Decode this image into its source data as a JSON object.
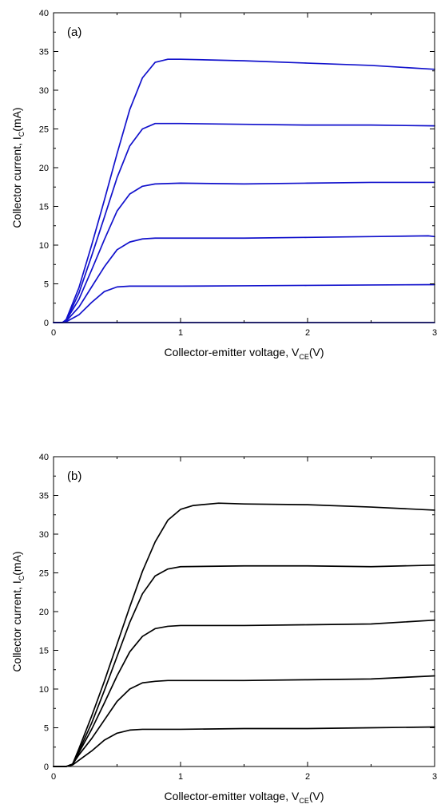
{
  "chart_data": [
    {
      "type": "line",
      "panel_label": "(a)",
      "xlabel": {
        "text": "Collector-emitter voltage, V",
        "sub": "CE",
        "suffix": "(V)"
      },
      "ylabel": {
        "text": "Collector current, I",
        "sub": "C",
        "suffix": "(mA)"
      },
      "xlim": [
        0,
        3
      ],
      "ylim": [
        0,
        40
      ],
      "xticks": [
        0,
        1,
        2,
        3
      ],
      "yticks": [
        0,
        5,
        10,
        15,
        20,
        25,
        30,
        35,
        40
      ],
      "grid": false,
      "color": "#1111cc",
      "series": [
        {
          "x": [
            0.05,
            0.5,
            1.0,
            1.5,
            2.0,
            2.5,
            3.0
          ],
          "y": [
            0,
            0,
            0,
            0,
            0,
            0,
            0
          ]
        },
        {
          "x": [
            0,
            0.07,
            0.1,
            0.2,
            0.3,
            0.4,
            0.5,
            0.6,
            0.8,
            1.0,
            1.5,
            2.0,
            2.5,
            3.0
          ],
          "y": [
            0,
            0,
            0.1,
            1.0,
            2.6,
            4.0,
            4.6,
            4.7,
            4.7,
            4.7,
            4.75,
            4.8,
            4.85,
            4.9
          ]
        },
        {
          "x": [
            0,
            0.07,
            0.1,
            0.2,
            0.3,
            0.4,
            0.5,
            0.6,
            0.7,
            0.8,
            1.0,
            1.5,
            2.0,
            2.5,
            2.95,
            3.0
          ],
          "y": [
            0,
            0,
            0.2,
            2.0,
            4.6,
            7.2,
            9.4,
            10.4,
            10.8,
            10.9,
            10.9,
            10.9,
            11.0,
            11.1,
            11.2,
            11.1
          ]
        },
        {
          "x": [
            0,
            0.07,
            0.1,
            0.2,
            0.3,
            0.4,
            0.5,
            0.6,
            0.7,
            0.8,
            1.0,
            1.5,
            2.0,
            2.5,
            3.0
          ],
          "y": [
            0,
            0,
            0.3,
            3.0,
            6.8,
            10.7,
            14.4,
            16.6,
            17.6,
            17.9,
            18.0,
            17.9,
            18.0,
            18.1,
            18.1
          ]
        },
        {
          "x": [
            0,
            0.07,
            0.1,
            0.2,
            0.3,
            0.4,
            0.5,
            0.6,
            0.7,
            0.8,
            1.0,
            1.5,
            2.0,
            2.5,
            3.0
          ],
          "y": [
            0,
            0,
            0.3,
            3.8,
            8.6,
            13.6,
            18.7,
            22.8,
            25.0,
            25.7,
            25.7,
            25.6,
            25.5,
            25.5,
            25.4
          ]
        },
        {
          "x": [
            0,
            0.07,
            0.1,
            0.2,
            0.3,
            0.4,
            0.5,
            0.6,
            0.7,
            0.8,
            0.9,
            1.0,
            1.5,
            2.0,
            2.5,
            3.0
          ],
          "y": [
            0,
            0,
            0.4,
            4.5,
            10.0,
            15.8,
            21.8,
            27.5,
            31.6,
            33.6,
            34.0,
            34.0,
            33.8,
            33.5,
            33.2,
            32.7
          ]
        }
      ]
    },
    {
      "type": "line",
      "panel_label": "(b)",
      "xlabel": {
        "text": "Collector-emitter voltage, V",
        "sub": "CE",
        "suffix": "(V)"
      },
      "ylabel": {
        "text": "Collector current, I",
        "sub": "C",
        "suffix": "(mA)"
      },
      "xlim": [
        0,
        3
      ],
      "ylim": [
        0,
        40
      ],
      "xticks": [
        0,
        1,
        2,
        3
      ],
      "yticks": [
        0,
        5,
        10,
        15,
        20,
        25,
        30,
        35,
        40
      ],
      "grid": false,
      "color": "#000000",
      "series": [
        {
          "x": [
            0,
            0.1,
            0.15,
            0.2,
            0.3,
            0.4,
            0.5,
            0.6,
            0.7,
            0.8,
            1.0,
            1.5,
            2.0,
            2.5,
            3.0
          ],
          "y": [
            0,
            0,
            0.2,
            0.8,
            2.0,
            3.4,
            4.3,
            4.7,
            4.8,
            4.8,
            4.8,
            4.9,
            4.9,
            5.0,
            5.1
          ]
        },
        {
          "x": [
            0,
            0.1,
            0.15,
            0.2,
            0.3,
            0.4,
            0.5,
            0.6,
            0.7,
            0.8,
            0.9,
            1.0,
            1.5,
            2.0,
            2.5,
            3.0
          ],
          "y": [
            0,
            0,
            0.3,
            1.5,
            3.6,
            6.0,
            8.4,
            10.0,
            10.8,
            11.0,
            11.1,
            11.1,
            11.1,
            11.2,
            11.3,
            11.7
          ]
        },
        {
          "x": [
            0,
            0.1,
            0.15,
            0.2,
            0.3,
            0.4,
            0.5,
            0.6,
            0.7,
            0.8,
            0.9,
            1.0,
            1.5,
            2.0,
            2.5,
            3.0
          ],
          "y": [
            0,
            0,
            0.3,
            1.8,
            4.8,
            8.2,
            11.7,
            14.8,
            16.8,
            17.8,
            18.1,
            18.2,
            18.2,
            18.3,
            18.4,
            18.9
          ]
        },
        {
          "x": [
            0,
            0.1,
            0.15,
            0.2,
            0.3,
            0.4,
            0.5,
            0.6,
            0.7,
            0.8,
            0.9,
            1.0,
            1.5,
            2.0,
            2.5,
            3.0
          ],
          "y": [
            0,
            0,
            0.3,
            2.0,
            5.6,
            9.8,
            14.2,
            18.6,
            22.3,
            24.6,
            25.5,
            25.8,
            25.9,
            25.9,
            25.8,
            26.0
          ]
        },
        {
          "x": [
            0,
            0.1,
            0.15,
            0.2,
            0.3,
            0.4,
            0.5,
            0.6,
            0.7,
            0.8,
            0.9,
            1.0,
            1.1,
            1.3,
            1.5,
            2.0,
            2.5,
            3.0
          ],
          "y": [
            0,
            0,
            0.3,
            2.3,
            6.5,
            11.0,
            15.8,
            20.6,
            25.2,
            29.0,
            31.8,
            33.2,
            33.7,
            34.0,
            33.9,
            33.8,
            33.5,
            33.1
          ]
        }
      ]
    }
  ]
}
